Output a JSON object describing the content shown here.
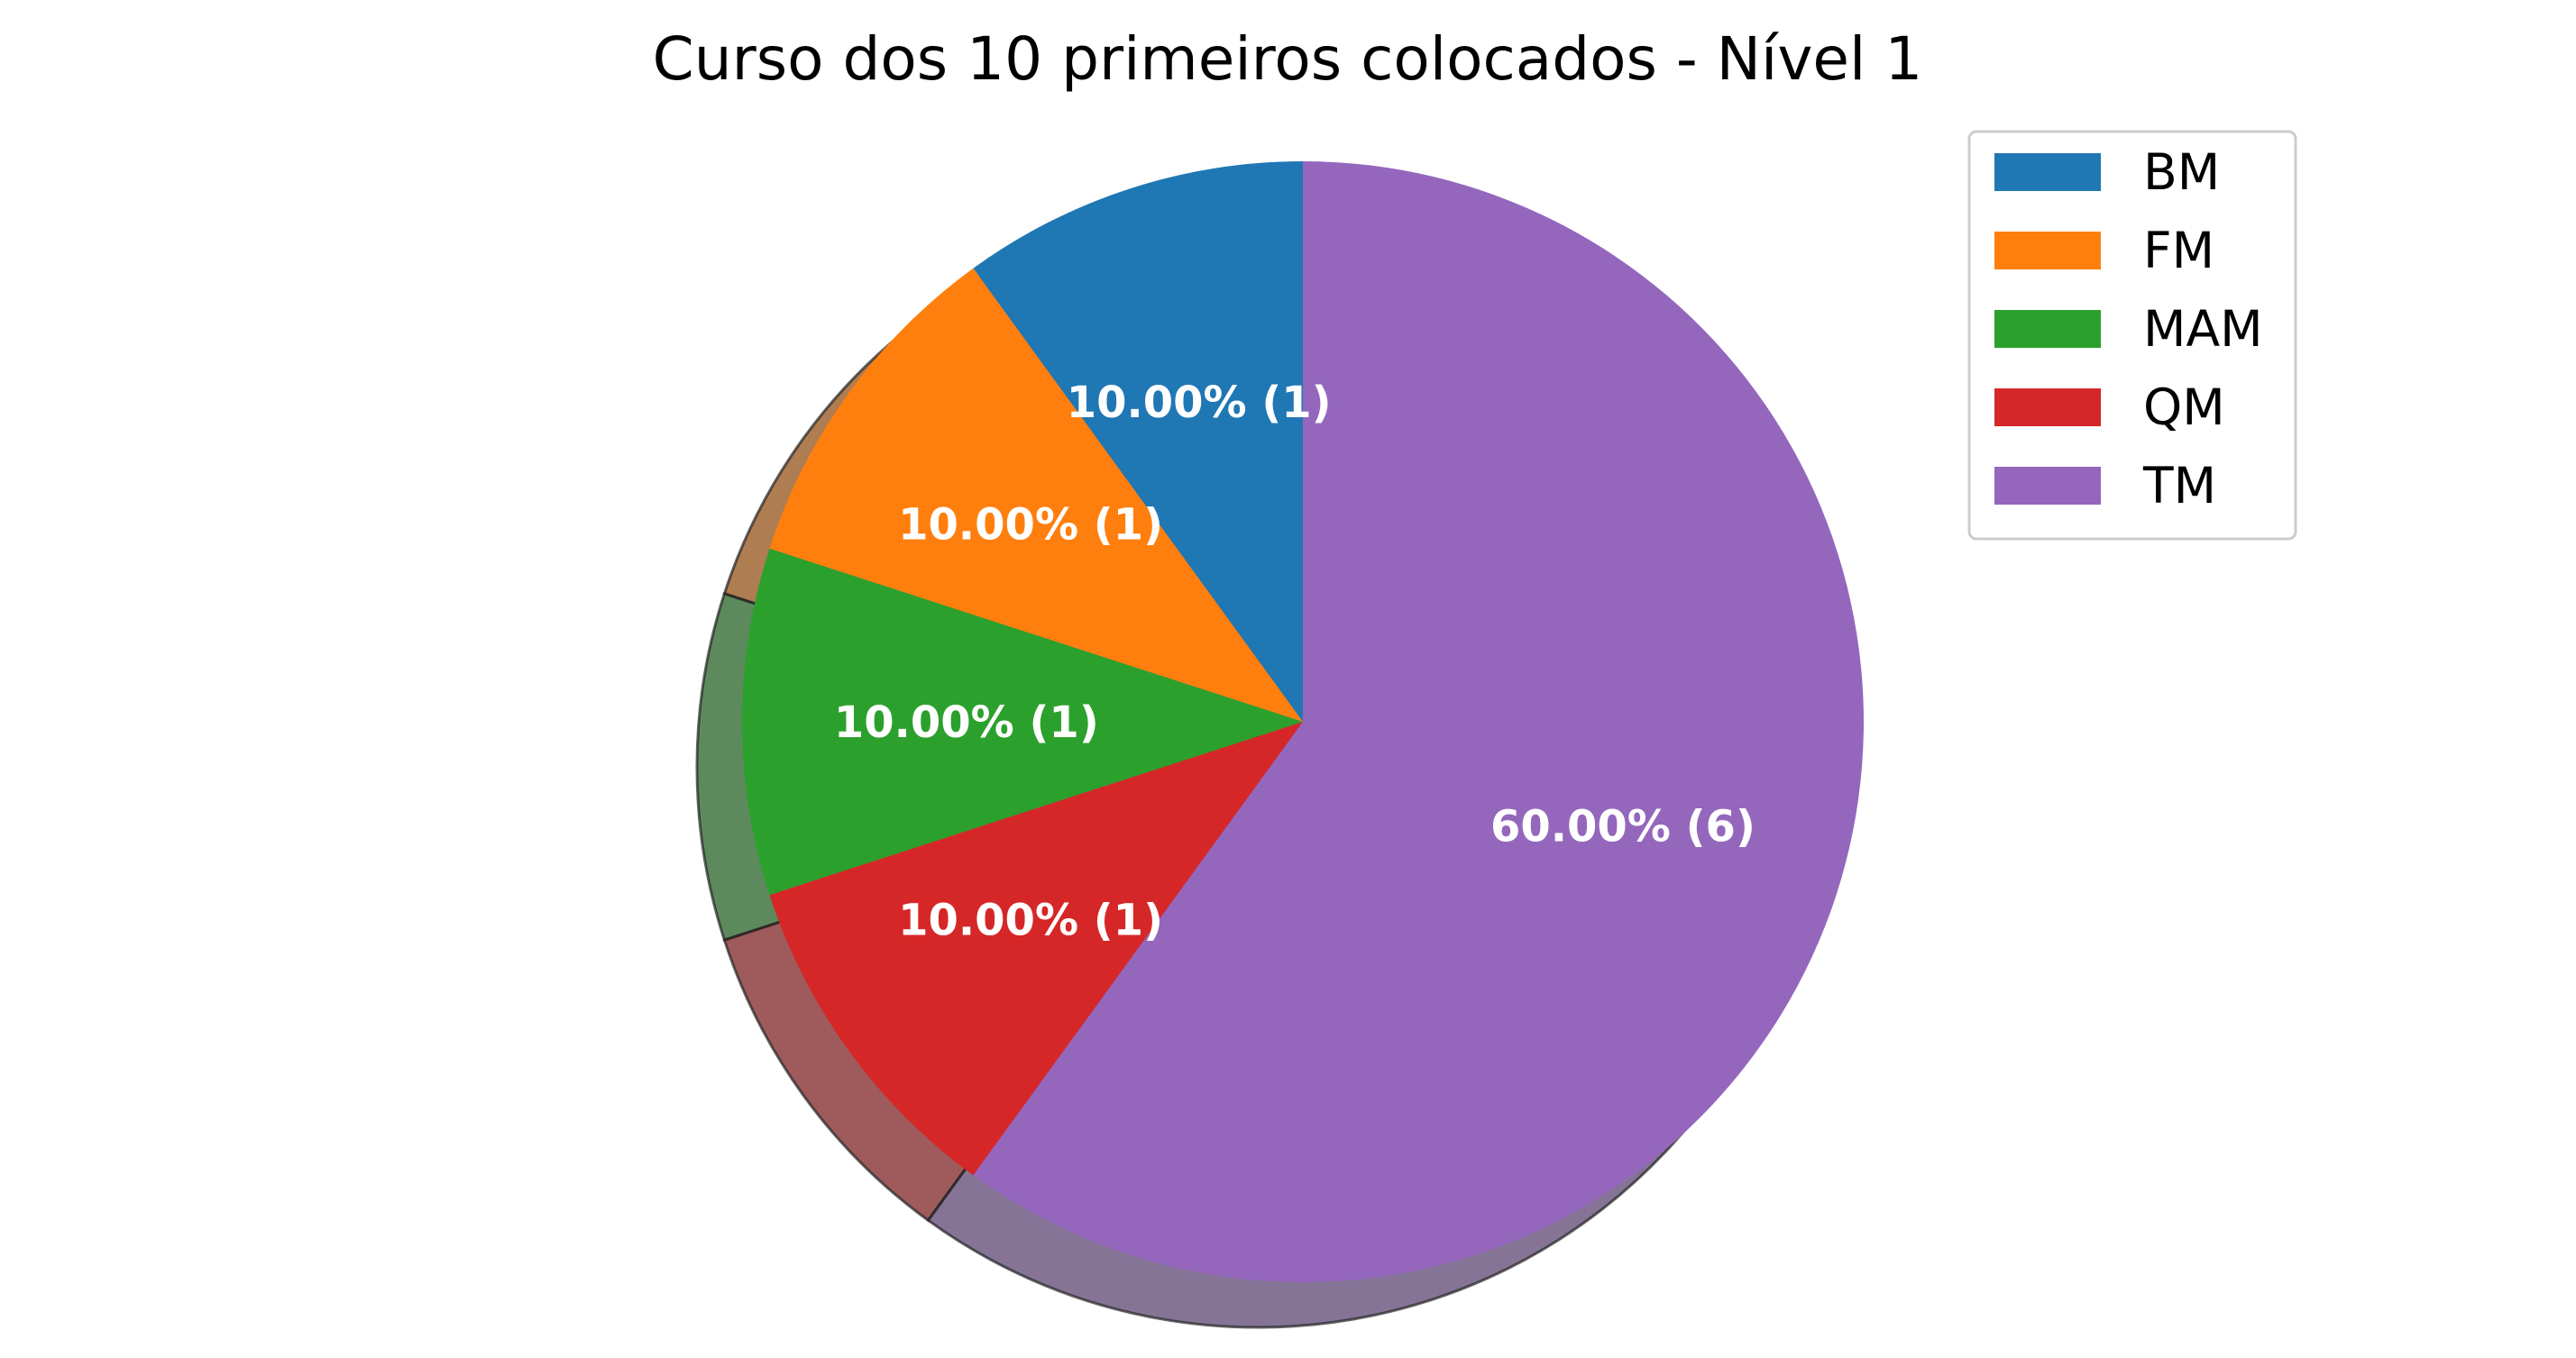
{
  "chart_data": {
    "type": "pie",
    "title": "Curso dos 10 primeiros colocados - Nível 1",
    "categories": [
      "BM",
      "FM",
      "MAM",
      "QM",
      "TM"
    ],
    "values": [
      1,
      1,
      1,
      1,
      6
    ],
    "labels": [
      "10.00%  (1)",
      "10.00%  (1)",
      "10.00%  (1)",
      "10.00%  (1)",
      "60.00%  (6)"
    ],
    "colors": [
      "#1f77b4",
      "#ff7f0e",
      "#2ca02c",
      "#d62728",
      "#9467bd"
    ],
    "start_angle": 90,
    "direction": "counterclockwise",
    "shadow": true,
    "legend": {
      "placement": "top-right",
      "entries": [
        "BM",
        "FM",
        "MAM",
        "QM",
        "TM"
      ]
    }
  }
}
